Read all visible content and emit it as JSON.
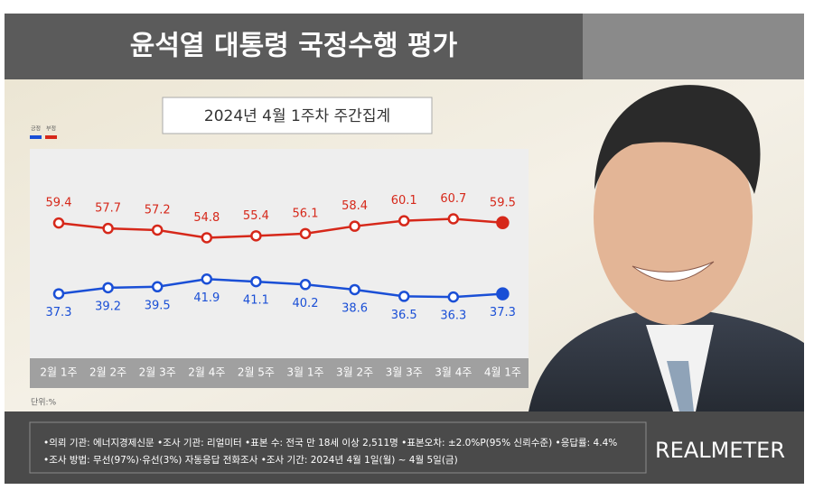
{
  "chart_data": {
    "type": "line",
    "title": "윤석열 대통령 국정수행 평가",
    "subtitle": "2024년 4월 1주차 주간집계",
    "unit": "단위:%",
    "categories": [
      "2월 1주",
      "2월 2주",
      "2월 3주",
      "2월 4주",
      "2월 5주",
      "3월 1주",
      "3월 2주",
      "3월 3주",
      "3월 4주",
      "4월 1주"
    ],
    "series": [
      {
        "name": "긍정",
        "color": "#1a4fd6",
        "values": [
          37.3,
          39.2,
          39.5,
          41.9,
          41.1,
          40.2,
          38.6,
          36.5,
          36.3,
          37.3
        ]
      },
      {
        "name": "부정",
        "color": "#d6281a",
        "values": [
          59.4,
          57.7,
          57.2,
          54.8,
          55.4,
          56.1,
          58.4,
          60.1,
          60.7,
          59.5
        ]
      }
    ]
  },
  "footer": {
    "lines": [
      "•의뢰 기관: 에너지경제신문 •조사 기관: 리얼미터 •표본 수: 전국 만 18세 이상 2,511명 •표본오차: ±2.0%P(95% 신뢰수준) •응답률: 4.4%",
      "•조사 방법: 무선(97%)·유선(3%) 자동응답 전화조사 •조사 기간: 2024년 4월 1일(월) ~ 4월 5일(금)"
    ],
    "brand": "REALMETER"
  }
}
